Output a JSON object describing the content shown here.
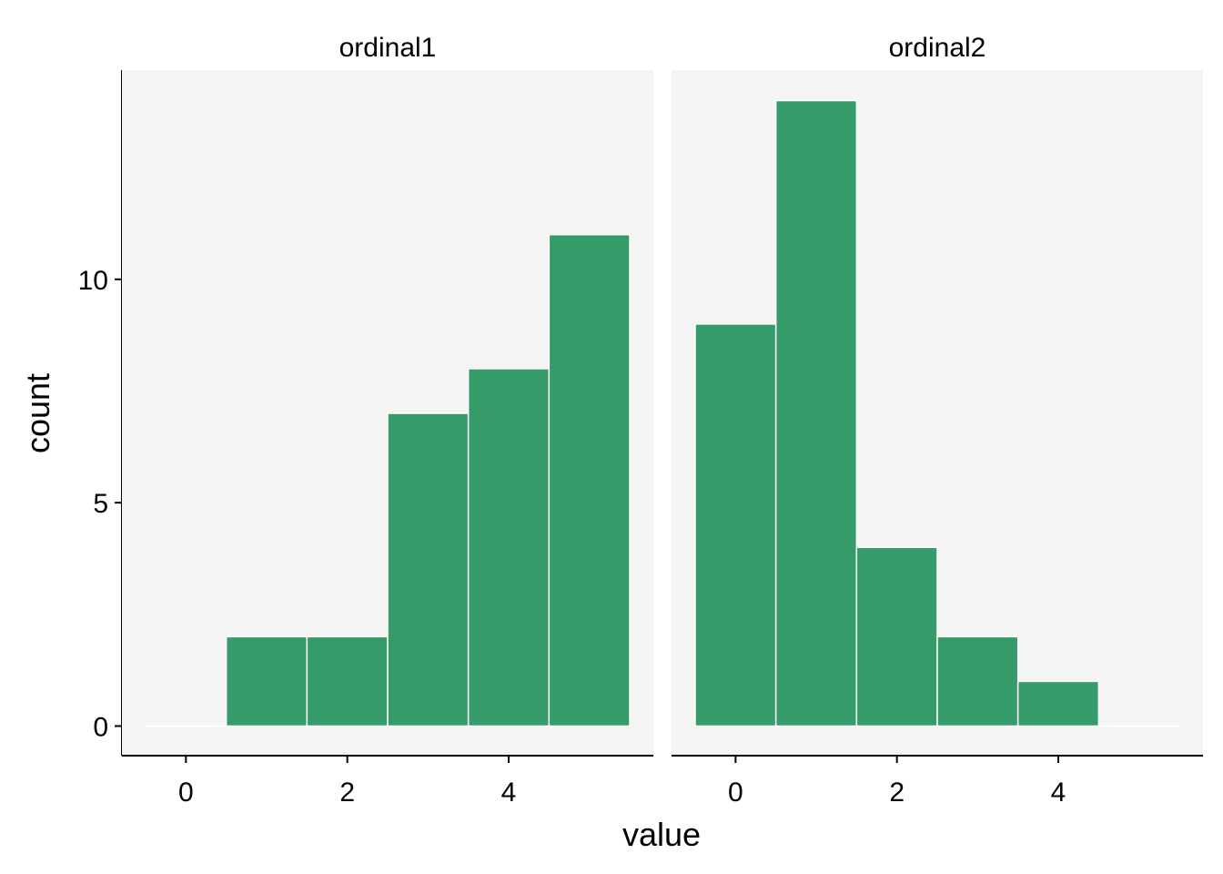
{
  "chart_data": {
    "type": "bar",
    "subtype": "faceted-histogram",
    "xlabel": "value",
    "ylabel": "count",
    "bin_width": 1,
    "colors": {
      "bar_fill": "#359B68",
      "bar_outline": "#FFFFFF",
      "panel_background": "#F4F4F4",
      "axis_line": "#000000"
    },
    "grid": false,
    "legend": "none",
    "panels": [
      {
        "title": "ordinal1",
        "xlim": [
          -0.5,
          5.5
        ],
        "ylim": [
          0,
          14
        ],
        "x_ticks": [
          0,
          2,
          4
        ],
        "bins": [
          {
            "x": 0,
            "count": 0
          },
          {
            "x": 1,
            "count": 2
          },
          {
            "x": 2,
            "count": 2
          },
          {
            "x": 3,
            "count": 7
          },
          {
            "x": 4,
            "count": 8
          },
          {
            "x": 5,
            "count": 11
          }
        ]
      },
      {
        "title": "ordinal2",
        "xlim": [
          -0.5,
          5.5
        ],
        "ylim": [
          0,
          14
        ],
        "x_ticks": [
          0,
          2,
          4
        ],
        "bins": [
          {
            "x": 0,
            "count": 9
          },
          {
            "x": 1,
            "count": 14
          },
          {
            "x": 2,
            "count": 4
          },
          {
            "x": 3,
            "count": 2
          },
          {
            "x": 4,
            "count": 1
          },
          {
            "x": 5,
            "count": 0
          }
        ]
      }
    ],
    "y_ticks": [
      0,
      5,
      10
    ]
  }
}
